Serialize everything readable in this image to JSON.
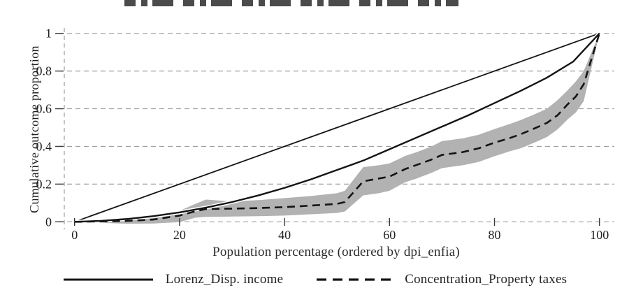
{
  "cropped_title": {
    "visible": true,
    "text_legible": false
  },
  "y_axis": {
    "label": "Cumulative outcome proportion",
    "tick_labels": [
      "0",
      "0.2",
      "0.4",
      "0.6",
      "0.8",
      "1"
    ]
  },
  "x_axis": {
    "label": "Population percentage (ordered by dpi_enfia)",
    "tick_labels": [
      "0",
      "20",
      "40",
      "60",
      "80",
      "100"
    ]
  },
  "legend": {
    "items": [
      {
        "label": "Lorenz_Disp. income",
        "line_style": "solid"
      },
      {
        "label": "Concentration_Property taxes",
        "line_style": "dashed"
      }
    ]
  },
  "colors": {
    "line": "#141414",
    "band": "#b2b2b2",
    "grid": "#9e9e9e",
    "tick": "#3a3a3a",
    "text": "#1f1f1f",
    "background": "#ffffff"
  },
  "chart_data": {
    "type": "line",
    "title": "",
    "xlabel": "Population percentage (ordered by dpi_enfia)",
    "ylabel": "Cumulative outcome proportion",
    "xlim": [
      0,
      100
    ],
    "ylim": [
      0,
      1
    ],
    "x_ticks": [
      0,
      20,
      40,
      60,
      80,
      100
    ],
    "y_ticks": [
      0,
      0.2,
      0.4,
      0.6,
      0.8,
      1
    ],
    "grid": "horizontal dashed gridlines at each y tick; dashed vertical line at left plot edge",
    "legend_position": "bottom",
    "series": [
      {
        "name": "Line of equality (45-degree)",
        "in_legend": false,
        "line": "solid",
        "width": 1.8,
        "x": [
          0,
          100
        ],
        "y": [
          0,
          1
        ]
      },
      {
        "name": "Lorenz_Disp. income",
        "in_legend": true,
        "line": "solid",
        "width": 2.4,
        "white_halo": true,
        "x": [
          0,
          5,
          10,
          15,
          20,
          25,
          30,
          35,
          40,
          45,
          50,
          55,
          60,
          65,
          70,
          75,
          80,
          85,
          90,
          95,
          100
        ],
        "y": [
          0,
          0.005,
          0.015,
          0.03,
          0.05,
          0.075,
          0.105,
          0.14,
          0.18,
          0.225,
          0.275,
          0.325,
          0.385,
          0.445,
          0.505,
          0.565,
          0.63,
          0.695,
          0.765,
          0.85,
          1
        ]
      },
      {
        "name": "Concentration_Property taxes",
        "in_legend": true,
        "line": "dashed",
        "width": 2.6,
        "x": [
          0,
          5,
          10,
          15,
          20,
          23,
          25,
          30,
          35,
          40,
          45,
          50,
          51.5,
          55,
          58,
          60,
          63,
          65,
          68,
          70,
          74,
          77,
          80,
          83,
          85,
          88,
          90,
          92,
          94,
          95.5,
          97,
          100
        ],
        "y": [
          0,
          0.002,
          0.005,
          0.012,
          0.033,
          0.056,
          0.068,
          0.07,
          0.073,
          0.078,
          0.086,
          0.095,
          0.105,
          0.215,
          0.23,
          0.24,
          0.28,
          0.3,
          0.33,
          0.355,
          0.37,
          0.39,
          0.42,
          0.445,
          0.465,
          0.5,
          0.525,
          0.565,
          0.625,
          0.665,
          0.73,
          1
        ]
      },
      {
        "name": "Confidence band (Concentration_Property taxes)",
        "in_legend": false,
        "type": "band",
        "x": [
          0,
          5,
          10,
          15,
          20,
          23,
          25,
          30,
          35,
          40,
          45,
          50,
          51.5,
          55,
          58,
          60,
          63,
          65,
          68,
          70,
          74,
          77,
          80,
          83,
          85,
          88,
          90,
          92,
          94,
          95.5,
          97,
          100
        ],
        "upper": [
          0,
          0.012,
          0.022,
          0.035,
          0.058,
          0.095,
          0.118,
          0.108,
          0.115,
          0.126,
          0.137,
          0.152,
          0.165,
          0.29,
          0.3,
          0.31,
          0.35,
          0.368,
          0.4,
          0.428,
          0.443,
          0.462,
          0.492,
          0.52,
          0.54,
          0.575,
          0.6,
          0.645,
          0.7,
          0.745,
          0.8,
          1
        ],
        "lower": [
          0,
          -0.006,
          -0.01,
          -0.009,
          -0.002,
          0.022,
          0.026,
          0.028,
          0.03,
          0.033,
          0.04,
          0.047,
          0.055,
          0.14,
          0.152,
          0.165,
          0.21,
          0.228,
          0.26,
          0.285,
          0.3,
          0.318,
          0.348,
          0.375,
          0.39,
          0.425,
          0.45,
          0.49,
          0.545,
          0.58,
          0.64,
          1
        ]
      }
    ]
  }
}
